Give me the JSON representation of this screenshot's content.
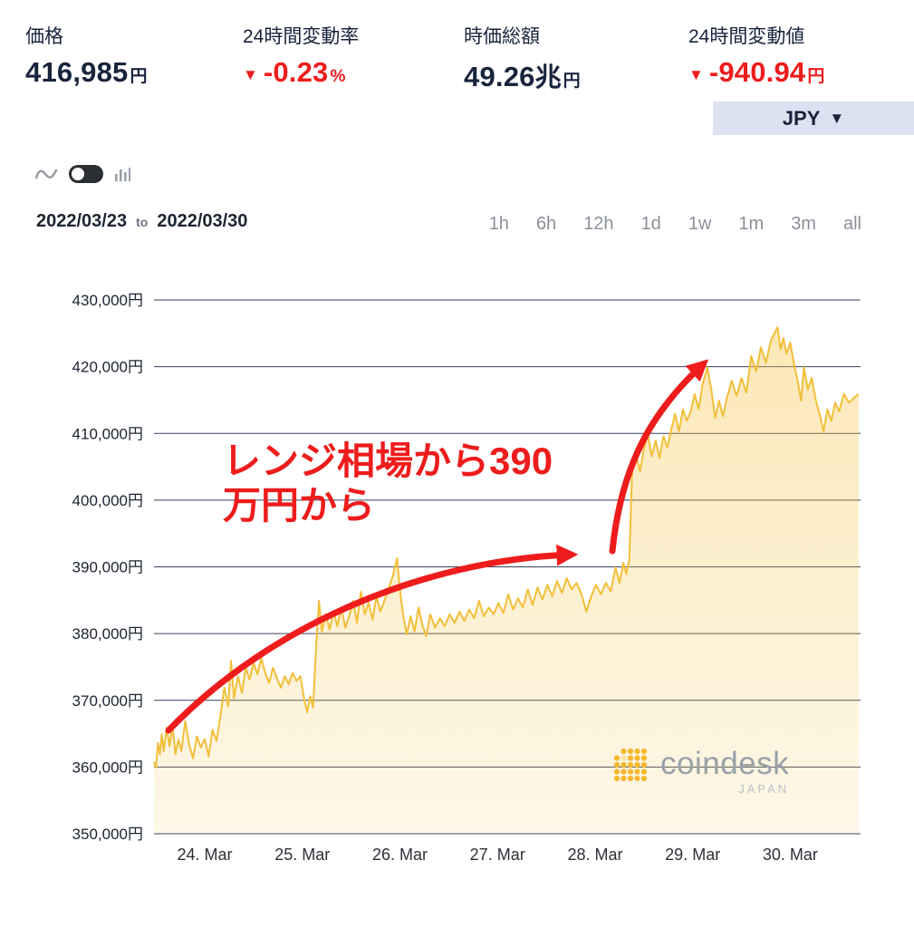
{
  "colors": {
    "accent_red": "#ee1c1c",
    "navy": "#18243c",
    "line_gold": "#f2bf3a",
    "currency_bar_bg": "#dde2f2"
  },
  "stats": {
    "price": {
      "label": "価格",
      "value": "416,985",
      "unit": "円"
    },
    "change_rate": {
      "label": "24時間変動率",
      "arrow": "▼",
      "value": "-0.23",
      "unit": "%"
    },
    "market_cap": {
      "label": "時価総額",
      "value": "49.26",
      "unit_big": "兆",
      "unit": "円"
    },
    "change_value": {
      "label": "24時間変動値",
      "arrow": "▼",
      "value": "-940.94",
      "unit": "円"
    }
  },
  "currency": {
    "label": "JPY",
    "caret": "▼"
  },
  "controls": {
    "date_from": "2022/03/23",
    "to_label": "to",
    "date_to": "2022/03/30",
    "ranges": [
      "1h",
      "6h",
      "12h",
      "1d",
      "1w",
      "1m",
      "3m",
      "all"
    ]
  },
  "annotation": {
    "line1": "レンジ相場から390",
    "line2": "万円から"
  },
  "watermark": {
    "brand": "coindesk",
    "sub": "JAPAN"
  },
  "chart_data": {
    "type": "area",
    "title": "BTC/JPY price chart 2022/03/23 - 2022/03/30",
    "x_unit": "date (March 2022)",
    "y_unit": "JPY",
    "xlim": [
      23.48,
      30.72
    ],
    "ylim": [
      350000,
      430000
    ],
    "yticks": [
      350000,
      360000,
      370000,
      380000,
      390000,
      400000,
      410000,
      420000,
      430000
    ],
    "ytick_labels": [
      "350,000円",
      "360,000円",
      "370,000円",
      "380,000円",
      "390,000円",
      "400,000円",
      "410,000円",
      "420,000円",
      "430,000円"
    ],
    "xticks": [
      24,
      25,
      26,
      27,
      28,
      29,
      30
    ],
    "xtick_labels": [
      "24. Mar",
      "25. Mar",
      "26. Mar",
      "27. Mar",
      "28. Mar",
      "29. Mar",
      "30. Mar"
    ],
    "grid": true,
    "grid_color": "#37425a",
    "line_color": "#f2bf3a",
    "points": [
      [
        23.48,
        360800
      ],
      [
        23.5,
        359900
      ],
      [
        23.52,
        363600
      ],
      [
        23.54,
        361900
      ],
      [
        23.56,
        364900
      ],
      [
        23.58,
        362400
      ],
      [
        23.61,
        365900
      ],
      [
        23.64,
        363100
      ],
      [
        23.67,
        366300
      ],
      [
        23.7,
        361900
      ],
      [
        23.73,
        364100
      ],
      [
        23.76,
        362400
      ],
      [
        23.8,
        366900
      ],
      [
        23.84,
        363400
      ],
      [
        23.88,
        361300
      ],
      [
        23.92,
        364600
      ],
      [
        23.96,
        362900
      ],
      [
        24.0,
        364200
      ],
      [
        24.04,
        361600
      ],
      [
        24.08,
        365600
      ],
      [
        24.12,
        363900
      ],
      [
        24.16,
        367600
      ],
      [
        24.2,
        371900
      ],
      [
        24.24,
        369100
      ],
      [
        24.27,
        375900
      ],
      [
        24.3,
        370300
      ],
      [
        24.34,
        373600
      ],
      [
        24.38,
        371100
      ],
      [
        24.42,
        374900
      ],
      [
        24.46,
        373100
      ],
      [
        24.5,
        375600
      ],
      [
        24.54,
        373900
      ],
      [
        24.58,
        376300
      ],
      [
        24.62,
        374100
      ],
      [
        24.66,
        372600
      ],
      [
        24.7,
        374900
      ],
      [
        24.74,
        373300
      ],
      [
        24.78,
        371900
      ],
      [
        24.82,
        373600
      ],
      [
        24.86,
        372400
      ],
      [
        24.9,
        374100
      ],
      [
        24.94,
        372900
      ],
      [
        24.98,
        373600
      ],
      [
        25.02,
        370100
      ],
      [
        25.05,
        368200
      ],
      [
        25.08,
        370600
      ],
      [
        25.11,
        368900
      ],
      [
        25.14,
        377600
      ],
      [
        25.17,
        384900
      ],
      [
        25.2,
        380300
      ],
      [
        25.24,
        382900
      ],
      [
        25.28,
        380600
      ],
      [
        25.32,
        383300
      ],
      [
        25.36,
        381100
      ],
      [
        25.4,
        383900
      ],
      [
        25.44,
        380900
      ],
      [
        25.48,
        382600
      ],
      [
        25.52,
        384900
      ],
      [
        25.56,
        381600
      ],
      [
        25.6,
        386300
      ],
      [
        25.64,
        382900
      ],
      [
        25.68,
        384600
      ],
      [
        25.72,
        382100
      ],
      [
        25.76,
        385600
      ],
      [
        25.8,
        383300
      ],
      [
        25.84,
        384900
      ],
      [
        25.88,
        386600
      ],
      [
        25.92,
        388300
      ],
      [
        25.97,
        391300
      ],
      [
        26.0,
        386600
      ],
      [
        26.03,
        383100
      ],
      [
        26.07,
        379900
      ],
      [
        26.11,
        382600
      ],
      [
        26.15,
        380300
      ],
      [
        26.19,
        383900
      ],
      [
        26.23,
        381300
      ],
      [
        26.27,
        379600
      ],
      [
        26.31,
        382900
      ],
      [
        26.36,
        380900
      ],
      [
        26.41,
        382300
      ],
      [
        26.46,
        381100
      ],
      [
        26.51,
        382900
      ],
      [
        26.56,
        381600
      ],
      [
        26.61,
        383300
      ],
      [
        26.66,
        381900
      ],
      [
        26.71,
        383600
      ],
      [
        26.76,
        382300
      ],
      [
        26.81,
        384900
      ],
      [
        26.86,
        382600
      ],
      [
        26.91,
        383900
      ],
      [
        26.96,
        382900
      ],
      [
        27.01,
        384600
      ],
      [
        27.06,
        383100
      ],
      [
        27.11,
        385900
      ],
      [
        27.16,
        383600
      ],
      [
        27.21,
        385300
      ],
      [
        27.26,
        383900
      ],
      [
        27.31,
        386600
      ],
      [
        27.36,
        384300
      ],
      [
        27.41,
        386900
      ],
      [
        27.46,
        385100
      ],
      [
        27.51,
        387300
      ],
      [
        27.56,
        385600
      ],
      [
        27.61,
        387900
      ],
      [
        27.66,
        386100
      ],
      [
        27.71,
        388300
      ],
      [
        27.76,
        386600
      ],
      [
        27.81,
        387600
      ],
      [
        27.86,
        385900
      ],
      [
        27.91,
        383300
      ],
      [
        27.96,
        385600
      ],
      [
        28.01,
        387300
      ],
      [
        28.06,
        385900
      ],
      [
        28.11,
        387600
      ],
      [
        28.16,
        386300
      ],
      [
        28.21,
        389900
      ],
      [
        28.25,
        387600
      ],
      [
        28.29,
        390600
      ],
      [
        28.32,
        388900
      ],
      [
        28.35,
        391100
      ],
      [
        28.38,
        404600
      ],
      [
        28.42,
        406900
      ],
      [
        28.46,
        404300
      ],
      [
        28.5,
        407600
      ],
      [
        28.54,
        409900
      ],
      [
        28.58,
        406600
      ],
      [
        28.62,
        408900
      ],
      [
        28.66,
        406300
      ],
      [
        28.7,
        409600
      ],
      [
        28.74,
        407900
      ],
      [
        28.78,
        410600
      ],
      [
        28.82,
        412900
      ],
      [
        28.86,
        410300
      ],
      [
        28.9,
        413600
      ],
      [
        28.94,
        411900
      ],
      [
        28.98,
        413300
      ],
      [
        29.02,
        415900
      ],
      [
        29.06,
        413600
      ],
      [
        29.1,
        417300
      ],
      [
        29.15,
        419900
      ],
      [
        29.19,
        416600
      ],
      [
        29.23,
        412300
      ],
      [
        29.27,
        414900
      ],
      [
        29.31,
        412600
      ],
      [
        29.35,
        415300
      ],
      [
        29.4,
        417900
      ],
      [
        29.45,
        415600
      ],
      [
        29.5,
        418300
      ],
      [
        29.55,
        416100
      ],
      [
        29.6,
        421600
      ],
      [
        29.65,
        419300
      ],
      [
        29.7,
        422900
      ],
      [
        29.75,
        420600
      ],
      [
        29.8,
        423900
      ],
      [
        29.87,
        425900
      ],
      [
        29.9,
        422600
      ],
      [
        29.93,
        424300
      ],
      [
        29.96,
        421900
      ],
      [
        30.0,
        423600
      ],
      [
        30.04,
        420300
      ],
      [
        30.08,
        417600
      ],
      [
        30.11,
        414900
      ],
      [
        30.14,
        419900
      ],
      [
        30.18,
        416600
      ],
      [
        30.22,
        418300
      ],
      [
        30.26,
        415100
      ],
      [
        30.3,
        412900
      ],
      [
        30.34,
        410300
      ],
      [
        30.38,
        413600
      ],
      [
        30.42,
        411900
      ],
      [
        30.46,
        414600
      ],
      [
        30.5,
        413300
      ],
      [
        30.55,
        415900
      ],
      [
        30.6,
        414600
      ],
      [
        30.65,
        415300
      ],
      [
        30.7,
        415900
      ]
    ]
  }
}
